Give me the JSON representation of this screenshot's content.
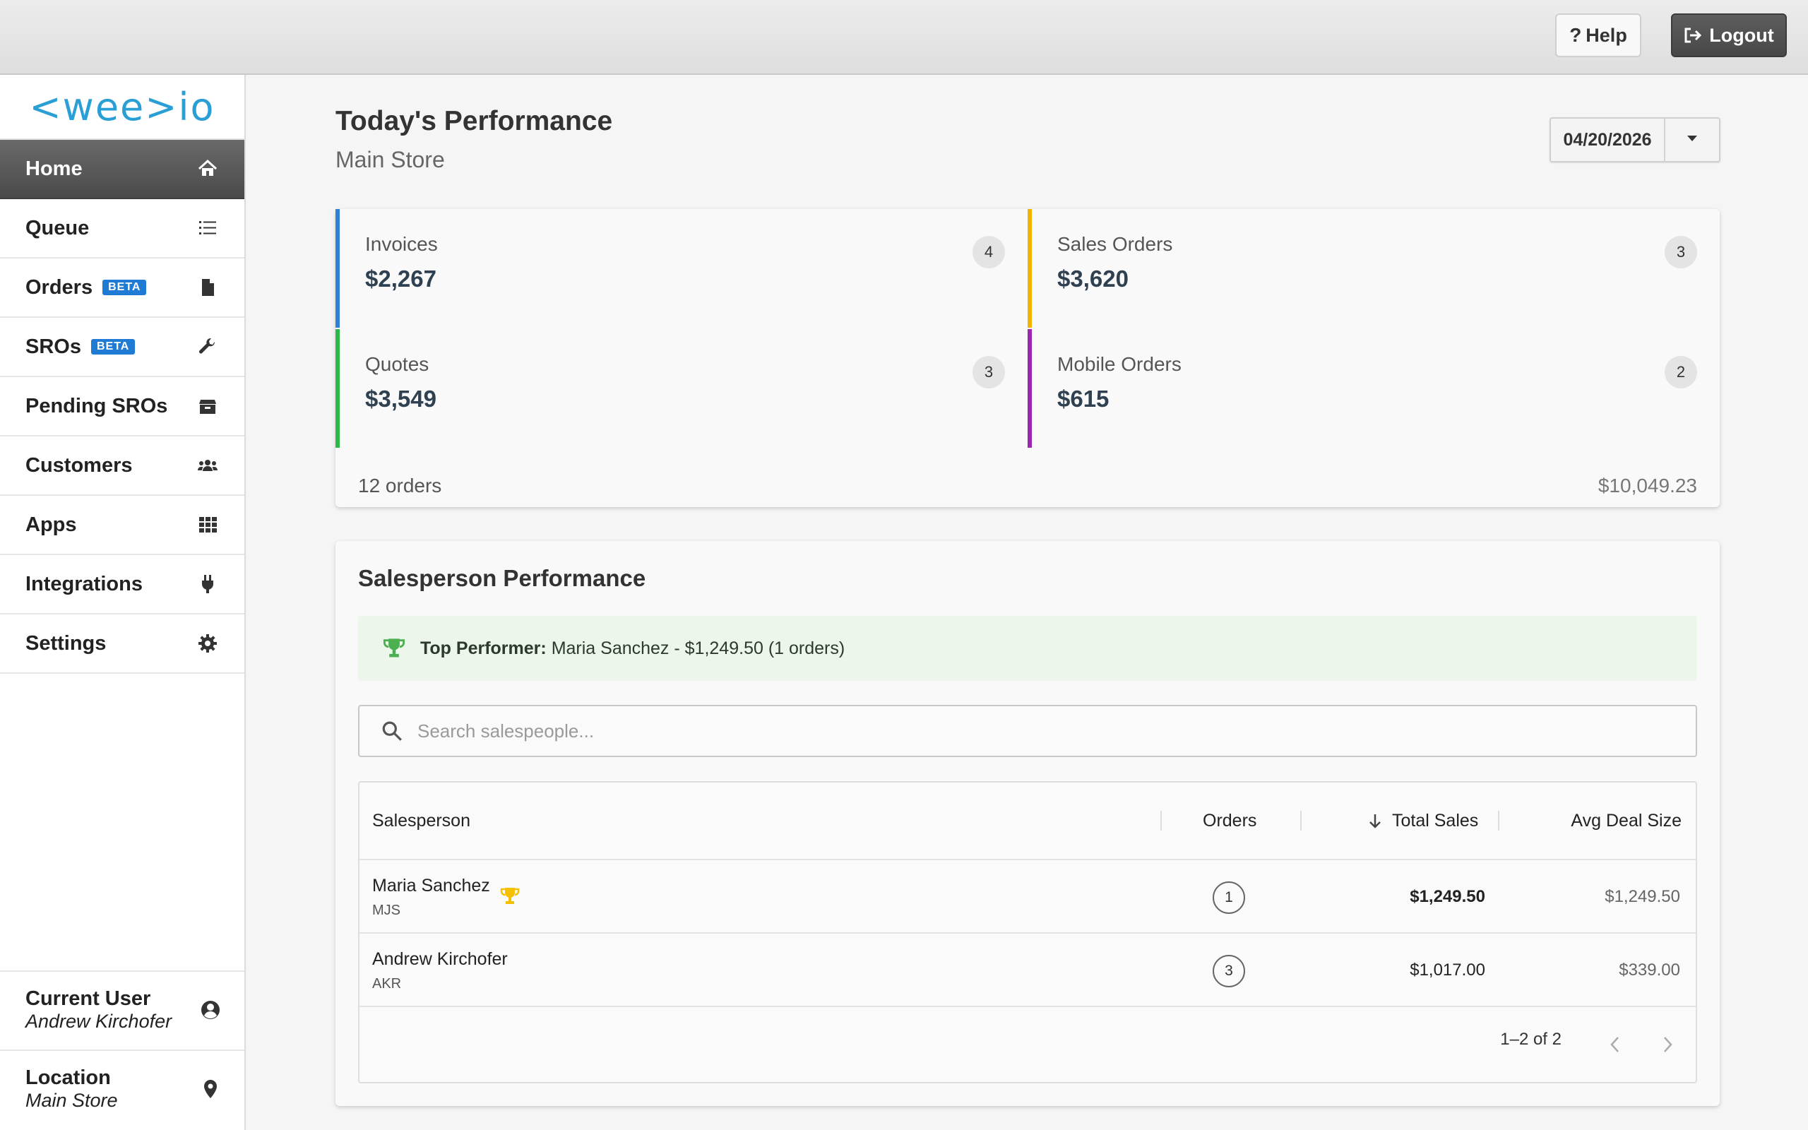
{
  "header": {
    "help_label": "Help",
    "logout_label": "Logout"
  },
  "brand": {
    "logo_text": "<wee>io",
    "color": "#2a9fd6"
  },
  "sidebar": {
    "items": [
      {
        "label": "Home",
        "icon": "home-icon",
        "active": true
      },
      {
        "label": "Queue",
        "icon": "list-icon"
      },
      {
        "label": "Orders",
        "badge": "BETA",
        "icon": "file-icon"
      },
      {
        "label": "SROs",
        "badge": "BETA",
        "icon": "wrench-icon"
      },
      {
        "label": "Pending SROs",
        "icon": "box-icon"
      },
      {
        "label": "Customers",
        "icon": "users-icon"
      },
      {
        "label": "Apps",
        "icon": "grid-icon"
      },
      {
        "label": "Integrations",
        "icon": "plug-icon"
      },
      {
        "label": "Settings",
        "icon": "gear-icon"
      }
    ],
    "current_user": {
      "label": "Current User",
      "value": "Andrew Kirchofer"
    },
    "location": {
      "label": "Location",
      "value": "Main Store"
    }
  },
  "main": {
    "title": "Today's Performance",
    "subtitle": "Main Store",
    "date": "04/20/2026",
    "stats": [
      {
        "label": "Invoices",
        "value": "$2,267",
        "count": "4",
        "color": "#2f7fd6"
      },
      {
        "label": "Sales Orders",
        "value": "$3,620",
        "count": "3",
        "color": "#f0b400"
      },
      {
        "label": "Quotes",
        "value": "$3,549",
        "count": "3",
        "color": "#2db84a"
      },
      {
        "label": "Mobile Orders",
        "value": "$615",
        "count": "2",
        "color": "#9c27b0"
      }
    ],
    "summary": {
      "orders": "12 orders",
      "total": "$10,049.23"
    }
  },
  "salesperson": {
    "title": "Salesperson Performance",
    "top_performer_label": "Top Performer:",
    "top_performer_text": "Maria Sanchez - $1,249.50 (1 orders)",
    "search_placeholder": "Search salespeople...",
    "columns": {
      "salesperson": "Salesperson",
      "orders": "Orders",
      "total_sales": "Total Sales",
      "avg_deal": "Avg Deal Size"
    },
    "rows": [
      {
        "name": "Maria Sanchez",
        "initials": "MJS",
        "orders": "1",
        "total": "$1,249.50",
        "avg": "$1,249.50",
        "top": true
      },
      {
        "name": "Andrew Kirchofer",
        "initials": "AKR",
        "orders": "3",
        "total": "$1,017.00",
        "avg": "$339.00"
      }
    ],
    "pagination": "1–2 of 2"
  }
}
